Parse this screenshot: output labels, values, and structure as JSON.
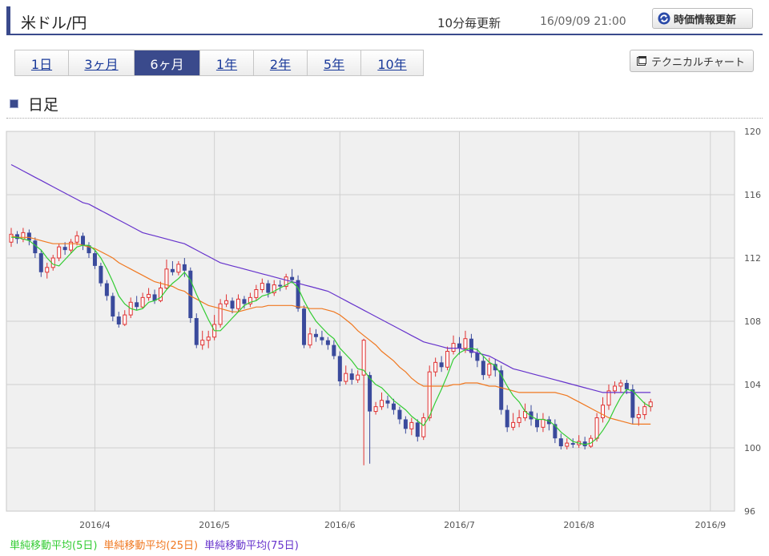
{
  "header": {
    "pair_title": "米ドル/円",
    "update_interval": "10分毎更新",
    "timestamp": "16/09/09 21:00",
    "refresh_label": "時価情報更新"
  },
  "period_tabs": [
    {
      "label": "1日",
      "active": false
    },
    {
      "label": "3ヶ月",
      "active": false
    },
    {
      "label": "6ヶ月",
      "active": true
    },
    {
      "label": "1年",
      "active": false
    },
    {
      "label": "2年",
      "active": false
    },
    {
      "label": "5年",
      "active": false
    },
    {
      "label": "10年",
      "active": false
    }
  ],
  "technical_chart_label": "テクニカルチャート",
  "section_title": "日足",
  "colors": {
    "accent": "#3a4a8c",
    "up_candle": "#e03030",
    "down_candle": "#3a4a9c",
    "ma5": "#33cc33",
    "ma25": "#f07820",
    "ma75": "#6633cc"
  },
  "chart_data": {
    "type": "candlestick",
    "ylim": [
      96,
      120
    ],
    "yticks": [
      96,
      100,
      104,
      108,
      112,
      116,
      120
    ],
    "xticks": [
      {
        "label": "2016/4",
        "index": 14
      },
      {
        "label": "2016/5",
        "index": 34
      },
      {
        "label": "2016/6",
        "index": 55
      },
      {
        "label": "2016/7",
        "index": 75
      },
      {
        "label": "2016/8",
        "index": 95
      },
      {
        "label": "2016/9",
        "index": 117
      }
    ],
    "candles": [
      [
        113.0,
        113.5,
        113.9,
        112.7
      ],
      [
        113.5,
        113.2,
        113.7,
        112.9
      ],
      [
        113.2,
        113.6,
        113.9,
        113.0
      ],
      [
        113.6,
        113.1,
        113.8,
        112.8
      ],
      [
        113.1,
        112.3,
        113.3,
        112.0
      ],
      [
        112.3,
        111.1,
        112.5,
        110.8
      ],
      [
        111.1,
        111.4,
        111.7,
        110.7
      ],
      [
        111.4,
        112.0,
        112.2,
        111.2
      ],
      [
        112.0,
        112.7,
        112.9,
        111.8
      ],
      [
        112.7,
        112.5,
        113.0,
        112.2
      ],
      [
        112.5,
        113.0,
        113.2,
        112.3
      ],
      [
        113.0,
        113.4,
        113.7,
        112.8
      ],
      [
        113.4,
        112.8,
        113.6,
        112.5
      ],
      [
        112.8,
        112.3,
        113.0,
        112.0
      ],
      [
        112.3,
        111.5,
        112.5,
        111.3
      ],
      [
        111.5,
        110.4,
        111.7,
        110.2
      ],
      [
        110.4,
        109.6,
        110.6,
        109.3
      ],
      [
        109.6,
        108.3,
        109.8,
        108.0
      ],
      [
        108.3,
        107.8,
        108.6,
        107.6
      ],
      [
        107.8,
        108.4,
        108.7,
        107.7
      ],
      [
        108.4,
        109.2,
        109.5,
        108.2
      ],
      [
        109.2,
        108.9,
        109.6,
        108.7
      ],
      [
        108.9,
        109.5,
        109.8,
        108.8
      ],
      [
        109.5,
        109.7,
        110.1,
        109.3
      ],
      [
        109.7,
        109.3,
        110.0,
        109.1
      ],
      [
        109.3,
        110.1,
        110.5,
        109.2
      ],
      [
        110.1,
        111.3,
        111.9,
        110.0
      ],
      [
        111.3,
        111.1,
        111.8,
        110.9
      ],
      [
        111.1,
        111.6,
        111.8,
        110.9
      ],
      [
        111.6,
        111.2,
        112.0,
        110.8
      ],
      [
        111.2,
        108.2,
        111.4,
        107.9
      ],
      [
        108.2,
        106.5,
        108.5,
        106.3
      ],
      [
        106.5,
        106.8,
        107.4,
        106.2
      ],
      [
        106.8,
        107.0,
        107.4,
        106.3
      ],
      [
        107.0,
        107.8,
        108.4,
        106.8
      ],
      [
        107.8,
        109.1,
        109.4,
        107.6
      ],
      [
        109.1,
        109.3,
        109.7,
        108.9
      ],
      [
        109.3,
        108.8,
        109.5,
        108.5
      ],
      [
        108.8,
        109.4,
        109.7,
        108.6
      ],
      [
        109.4,
        109.1,
        109.6,
        108.8
      ],
      [
        109.1,
        109.5,
        109.8,
        108.9
      ],
      [
        109.5,
        110.0,
        110.3,
        109.3
      ],
      [
        110.0,
        110.4,
        110.7,
        109.8
      ],
      [
        110.4,
        109.8,
        110.6,
        109.5
      ],
      [
        109.8,
        110.3,
        110.6,
        109.6
      ],
      [
        110.3,
        110.2,
        110.6,
        109.9
      ],
      [
        110.2,
        110.8,
        111.0,
        110.0
      ],
      [
        110.8,
        110.6,
        111.3,
        110.4
      ],
      [
        110.6,
        108.8,
        110.9,
        108.6
      ],
      [
        108.8,
        106.5,
        109.0,
        106.3
      ],
      [
        106.5,
        107.2,
        107.6,
        106.3
      ],
      [
        107.2,
        107.0,
        107.5,
        106.7
      ],
      [
        107.0,
        106.8,
        107.4,
        106.5
      ],
      [
        106.8,
        106.5,
        107.0,
        106.2
      ],
      [
        106.5,
        105.8,
        106.8,
        105.6
      ],
      [
        105.8,
        104.2,
        106.1,
        103.9
      ],
      [
        104.2,
        104.7,
        105.2,
        104.0
      ],
      [
        104.7,
        104.3,
        105.0,
        104.0
      ],
      [
        104.3,
        104.6,
        104.9,
        104.1
      ],
      [
        104.6,
        106.8,
        106.9,
        98.9
      ],
      [
        104.6,
        102.3,
        104.8,
        99.0
      ],
      [
        102.3,
        102.6,
        102.9,
        102.1
      ],
      [
        102.6,
        103.0,
        103.5,
        102.4
      ],
      [
        103.0,
        102.8,
        103.3,
        102.5
      ],
      [
        102.8,
        102.4,
        103.1,
        102.1
      ],
      [
        102.4,
        101.8,
        102.6,
        101.5
      ],
      [
        101.8,
        101.2,
        102.0,
        100.9
      ],
      [
        101.2,
        101.6,
        101.9,
        100.8
      ],
      [
        101.6,
        100.7,
        101.8,
        100.4
      ],
      [
        100.7,
        101.9,
        102.2,
        100.5
      ],
      [
        101.9,
        104.8,
        105.2,
        101.7
      ],
      [
        104.8,
        105.4,
        105.7,
        104.5
      ],
      [
        105.4,
        105.1,
        105.8,
        104.8
      ],
      [
        105.1,
        106.1,
        106.4,
        104.9
      ],
      [
        106.1,
        106.6,
        107.1,
        105.9
      ],
      [
        106.6,
        106.3,
        107.0,
        105.9
      ],
      [
        106.3,
        106.9,
        107.4,
        106.0
      ],
      [
        106.9,
        106.0,
        107.2,
        105.7
      ],
      [
        106.0,
        105.5,
        106.3,
        105.1
      ],
      [
        105.5,
        104.6,
        105.8,
        104.3
      ],
      [
        104.6,
        105.3,
        105.7,
        104.4
      ],
      [
        105.3,
        104.9,
        105.6,
        104.5
      ],
      [
        104.9,
        102.4,
        105.2,
        102.1
      ],
      [
        102.4,
        101.3,
        102.7,
        101.0
      ],
      [
        101.3,
        101.6,
        102.2,
        101.1
      ],
      [
        101.6,
        101.9,
        102.4,
        101.3
      ],
      [
        101.9,
        102.3,
        102.8,
        101.7
      ],
      [
        102.3,
        101.8,
        102.7,
        101.4
      ],
      [
        101.8,
        101.3,
        102.2,
        101.0
      ],
      [
        101.3,
        101.8,
        102.2,
        101.0
      ],
      [
        101.8,
        101.5,
        102.0,
        101.1
      ],
      [
        101.5,
        100.6,
        101.8,
        100.3
      ],
      [
        100.6,
        100.1,
        100.9,
        99.9
      ],
      [
        100.1,
        100.3,
        100.6,
        99.9
      ],
      [
        100.3,
        100.2,
        100.6,
        100.0
      ],
      [
        100.2,
        100.4,
        100.8,
        100.0
      ],
      [
        100.4,
        100.1,
        100.7,
        99.9
      ],
      [
        100.1,
        100.6,
        100.8,
        100.0
      ],
      [
        100.6,
        101.9,
        102.2,
        100.4
      ],
      [
        101.9,
        102.7,
        103.2,
        101.6
      ],
      [
        102.7,
        103.6,
        104.0,
        102.4
      ],
      [
        103.6,
        103.9,
        104.2,
        103.4
      ],
      [
        103.9,
        104.1,
        104.3,
        103.5
      ],
      [
        104.1,
        103.7,
        104.3,
        103.4
      ],
      [
        103.7,
        101.9,
        104.0,
        101.5
      ],
      [
        101.9,
        102.1,
        102.6,
        101.4
      ],
      [
        102.1,
        102.6,
        102.9,
        101.8
      ],
      [
        102.6,
        102.9,
        103.1,
        102.3
      ]
    ],
    "ma5": [
      113.3,
      113.3,
      113.2,
      113.1,
      112.8,
      112.5,
      112.0,
      111.6,
      111.5,
      111.9,
      112.3,
      112.7,
      112.8,
      112.8,
      112.5,
      112.0,
      111.3,
      110.5,
      109.6,
      109.1,
      108.8,
      108.7,
      108.8,
      109.2,
      109.3,
      109.5,
      110.0,
      110.4,
      110.7,
      111.1,
      110.6,
      109.7,
      108.9,
      108.1,
      107.4,
      107.4,
      107.8,
      108.2,
      108.6,
      109.0,
      109.2,
      109.3,
      109.6,
      109.7,
      109.9,
      110.1,
      110.3,
      110.5,
      110.1,
      109.3,
      108.6,
      108.0,
      107.6,
      107.2,
      106.9,
      106.3,
      105.9,
      105.5,
      105.0,
      104.9,
      104.4,
      104.0,
      103.8,
      103.4,
      103.0,
      102.7,
      102.4,
      102.0,
      101.7,
      101.4,
      102.0,
      102.9,
      103.7,
      104.6,
      105.6,
      106.0,
      106.2,
      106.3,
      106.2,
      105.8,
      105.4,
      105.2,
      104.6,
      103.9,
      103.3,
      102.9,
      102.3,
      102.0,
      101.8,
      101.8,
      101.7,
      101.4,
      101.0,
      100.7,
      100.4,
      100.3,
      100.2,
      100.3,
      100.6,
      101.1,
      101.7,
      102.5,
      103.2,
      103.7,
      103.6,
      103.2,
      102.8,
      102.6
    ],
    "ma25": [
      113.4,
      113.3,
      113.3,
      113.3,
      113.2,
      113.1,
      113.0,
      112.9,
      112.9,
      112.9,
      112.9,
      112.9,
      112.8,
      112.7,
      112.6,
      112.4,
      112.2,
      112.0,
      111.7,
      111.5,
      111.3,
      111.1,
      110.9,
      110.7,
      110.5,
      110.4,
      110.3,
      110.2,
      110.0,
      109.9,
      109.6,
      109.4,
      109.2,
      109.0,
      108.9,
      108.8,
      108.7,
      108.6,
      108.6,
      108.7,
      108.8,
      108.9,
      108.9,
      109.0,
      109.0,
      109.0,
      109.0,
      109.0,
      108.9,
      108.9,
      108.8,
      108.8,
      108.8,
      108.7,
      108.6,
      108.4,
      108.1,
      107.8,
      107.4,
      107.1,
      106.8,
      106.5,
      106.1,
      105.8,
      105.5,
      105.1,
      104.8,
      104.4,
      104.1,
      103.9,
      103.9,
      103.9,
      103.9,
      103.9,
      104.0,
      104.0,
      104.1,
      104.1,
      104.1,
      104.0,
      103.9,
      103.9,
      103.8,
      103.7,
      103.6,
      103.5,
      103.5,
      103.5,
      103.5,
      103.5,
      103.5,
      103.5,
      103.4,
      103.3,
      103.1,
      102.9,
      102.7,
      102.5,
      102.3,
      102.1,
      101.9,
      101.8,
      101.7,
      101.6,
      101.5,
      101.5,
      101.5,
      101.5
    ],
    "ma75": [
      117.9,
      117.7,
      117.5,
      117.3,
      117.1,
      116.9,
      116.7,
      116.5,
      116.3,
      116.1,
      115.9,
      115.7,
      115.5,
      115.4,
      115.2,
      115.0,
      114.8,
      114.6,
      114.4,
      114.2,
      114.0,
      113.8,
      113.6,
      113.5,
      113.4,
      113.3,
      113.2,
      113.1,
      113.0,
      112.9,
      112.7,
      112.5,
      112.3,
      112.1,
      111.9,
      111.7,
      111.6,
      111.5,
      111.4,
      111.3,
      111.2,
      111.1,
      111.0,
      110.9,
      110.8,
      110.7,
      110.6,
      110.5,
      110.4,
      110.3,
      110.2,
      110.1,
      110.0,
      109.9,
      109.7,
      109.5,
      109.3,
      109.1,
      108.9,
      108.7,
      108.5,
      108.3,
      108.1,
      107.9,
      107.7,
      107.5,
      107.3,
      107.1,
      106.9,
      106.7,
      106.6,
      106.5,
      106.4,
      106.3,
      106.3,
      106.3,
      106.2,
      106.1,
      106.0,
      105.9,
      105.8,
      105.6,
      105.4,
      105.2,
      105.0,
      104.9,
      104.8,
      104.7,
      104.6,
      104.5,
      104.4,
      104.3,
      104.2,
      104.1,
      104.0,
      103.9,
      103.8,
      103.7,
      103.6,
      103.5,
      103.5,
      103.5,
      103.5,
      103.5,
      103.5,
      103.5,
      103.5,
      103.5
    ],
    "legend": [
      {
        "label": "単純移動平均(5日)",
        "color": "#33cc33"
      },
      {
        "label": "単純移動平均(25日)",
        "color": "#f07820"
      },
      {
        "label": "単純移動平均(75日)",
        "color": "#6633cc"
      }
    ]
  }
}
